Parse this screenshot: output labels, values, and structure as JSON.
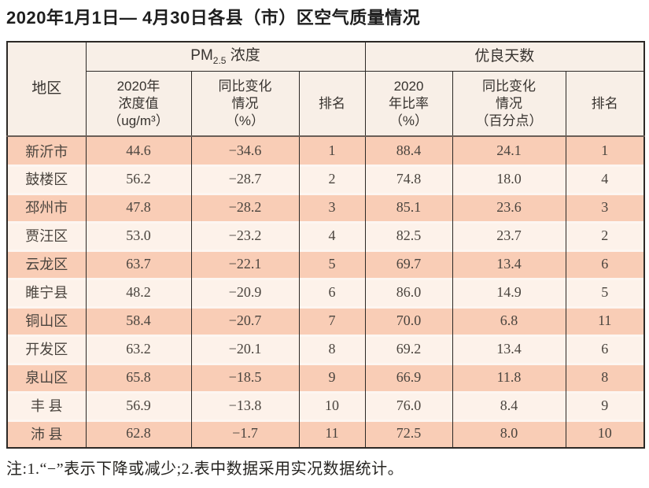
{
  "page": {
    "title": "2020年1月1日— 4月30日各县（市）区空气质量情况",
    "footnote": "注:1.“−”表示下降或减少;2.表中数据采用实况数据统计。"
  },
  "table": {
    "region_header": "地区",
    "group_pm": {
      "prefix": "PM",
      "sub": "2.5",
      "suffix": " 浓度"
    },
    "group_good": "优良天数",
    "subheaders": {
      "pm_value": "2020年\n浓度值\n（ug/m³）",
      "pm_change": "同比变化\n情况\n（%）",
      "pm_rank": "排名",
      "good_rate": "2020\n年比率\n（%）",
      "good_change": "同比变化\n情况\n（百分点）",
      "good_rank": "排名"
    },
    "columns_order": [
      "region",
      "pm_value",
      "pm_change",
      "pm_rank",
      "good_rate",
      "good_change",
      "good_rank"
    ],
    "rows": [
      {
        "region": "新沂市",
        "pm_value": "44.6",
        "pm_change": "−34.6",
        "pm_rank": "1",
        "good_rate": "88.4",
        "good_change": "24.1",
        "good_rank": "1"
      },
      {
        "region": "鼓楼区",
        "pm_value": "56.2",
        "pm_change": "−28.7",
        "pm_rank": "2",
        "good_rate": "74.8",
        "good_change": "18.0",
        "good_rank": "4"
      },
      {
        "region": "邳州市",
        "pm_value": "47.8",
        "pm_change": "−28.2",
        "pm_rank": "3",
        "good_rate": "85.1",
        "good_change": "23.6",
        "good_rank": "3"
      },
      {
        "region": "贾汪区",
        "pm_value": "53.0",
        "pm_change": "−23.2",
        "pm_rank": "4",
        "good_rate": "82.5",
        "good_change": "23.7",
        "good_rank": "2"
      },
      {
        "region": "云龙区",
        "pm_value": "63.7",
        "pm_change": "−22.1",
        "pm_rank": "5",
        "good_rate": "69.7",
        "good_change": "13.4",
        "good_rank": "6"
      },
      {
        "region": "睢宁县",
        "pm_value": "48.2",
        "pm_change": "−20.9",
        "pm_rank": "6",
        "good_rate": "86.0",
        "good_change": "14.9",
        "good_rank": "5"
      },
      {
        "region": "铜山区",
        "pm_value": "58.4",
        "pm_change": "−20.7",
        "pm_rank": "7",
        "good_rate": "70.0",
        "good_change": "6.8",
        "good_rank": "11"
      },
      {
        "region": "开发区",
        "pm_value": "63.2",
        "pm_change": "−20.1",
        "pm_rank": "8",
        "good_rate": "69.2",
        "good_change": "13.4",
        "good_rank": "6"
      },
      {
        "region": "泉山区",
        "pm_value": "65.8",
        "pm_change": "−18.5",
        "pm_rank": "9",
        "good_rate": "66.9",
        "good_change": "11.8",
        "good_rank": "8"
      },
      {
        "region": "丰 县",
        "pm_value": "56.9",
        "pm_change": "−13.8",
        "pm_rank": "10",
        "good_rate": "76.0",
        "good_change": "8.4",
        "good_rank": "9"
      },
      {
        "region": "沛 县",
        "pm_value": "62.8",
        "pm_change": "−1.7",
        "pm_rank": "11",
        "good_rate": "72.5",
        "good_change": "8.0",
        "good_rank": "10"
      }
    ]
  },
  "colors": {
    "row_odd": "#f9cdb6",
    "row_even": "#fdf2ea",
    "row_gap": "#fdf6f1",
    "header_bg": "#f8efe7",
    "grid_line": "#2c2926",
    "header_sep": "#6a5e57",
    "body_text": "#4a443e",
    "title_text": "#1e1e1e"
  }
}
